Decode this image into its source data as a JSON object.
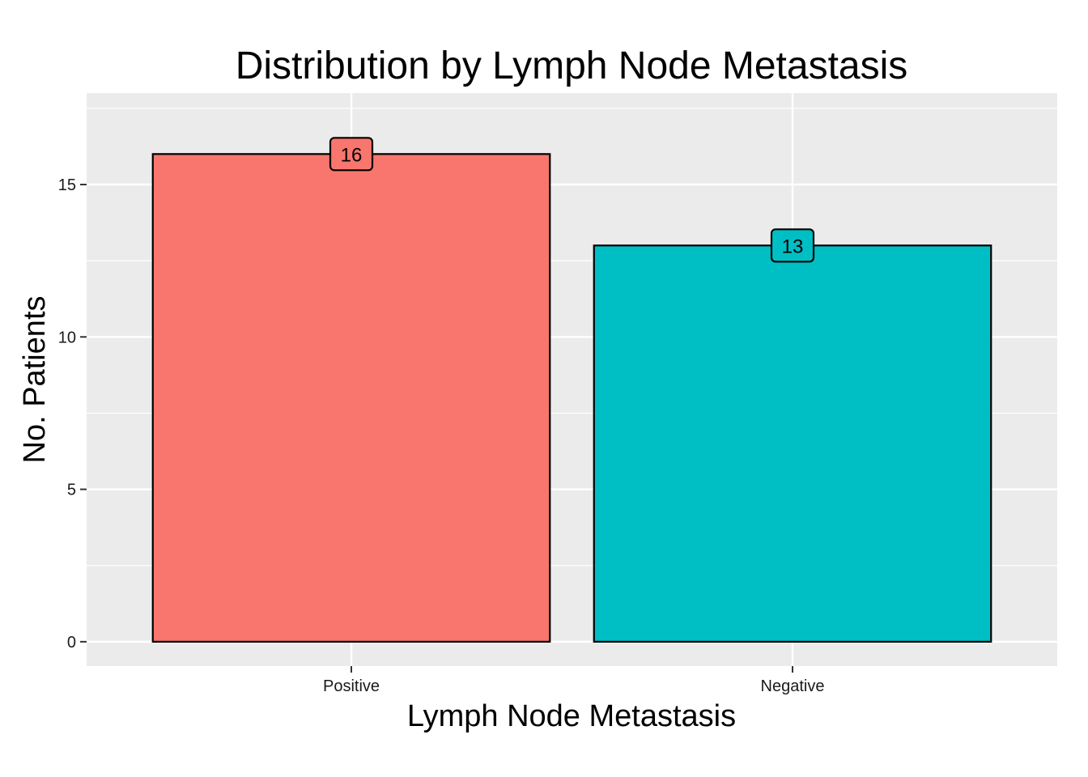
{
  "chart_data": {
    "type": "bar",
    "title": "Distribution by Lymph Node Metastasis",
    "xlabel": "Lymph Node Metastasis",
    "ylabel": "No. Patients",
    "categories": [
      "Positive",
      "Negative"
    ],
    "values": [
      16,
      13
    ],
    "data_labels": [
      "16",
      "13"
    ],
    "colors": [
      "#F8766D",
      "#00BFC4"
    ],
    "ylim": [
      -0.8,
      18
    ],
    "yticks": [
      0,
      5,
      10,
      15
    ],
    "ytick_labels": [
      "0",
      "5",
      "10",
      "15"
    ],
    "grid": true,
    "panel_background": "#EBEBEB",
    "legend": "none"
  }
}
